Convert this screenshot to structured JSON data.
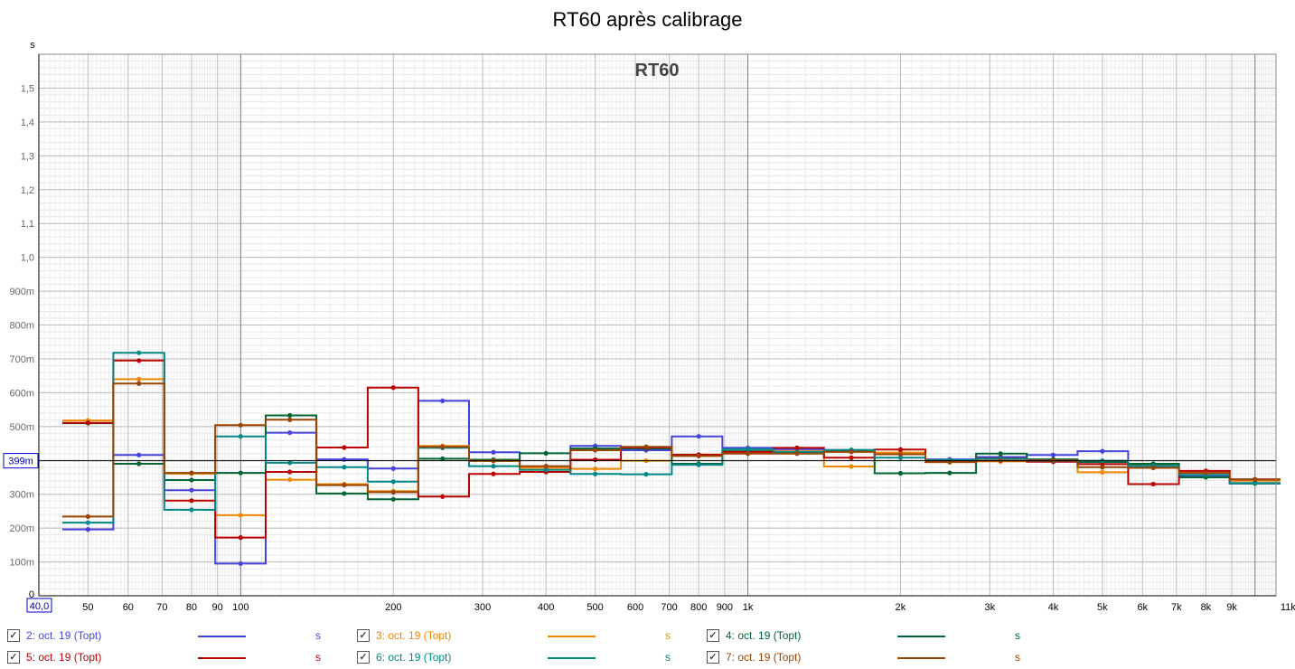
{
  "title": "RT60 après calibrage",
  "legend": [
    {
      "name": "2: oct. 19 (Topt)",
      "unit": "s",
      "color": "#4444dd",
      "checked": true
    },
    {
      "name": "3: oct. 19 (Topt)",
      "unit": "s",
      "color": "#ee8800",
      "checked": true
    },
    {
      "name": "4: oct. 19 (Topt)",
      "unit": "s",
      "color": "#006633",
      "checked": true
    },
    {
      "name": "5: oct. 19 (Topt)",
      "unit": "s",
      "color": "#bb0000",
      "checked": true
    },
    {
      "name": "6: oct. 19 (Topt)",
      "unit": "s",
      "color": "#008888",
      "checked": true
    },
    {
      "name": "7: oct. 19 (Topt)",
      "unit": "s",
      "color": "#994400",
      "checked": true
    }
  ],
  "chart_data": {
    "type": "line",
    "title": "RT60",
    "ylabel": "s",
    "xscale": "log",
    "xlim": [
      40,
      11000
    ],
    "ylim": [
      0,
      1.6
    ],
    "grid": true,
    "cursor_value": 0.399,
    "cursor_label": "399m",
    "xmin_label": "40,0",
    "xticks": [
      {
        "v": 50,
        "label": "50"
      },
      {
        "v": 60,
        "label": "60"
      },
      {
        "v": 70,
        "label": "70"
      },
      {
        "v": 80,
        "label": "80"
      },
      {
        "v": 90,
        "label": "90"
      },
      {
        "v": 100,
        "label": "100"
      },
      {
        "v": 200,
        "label": "200"
      },
      {
        "v": 300,
        "label": "300"
      },
      {
        "v": 400,
        "label": "400"
      },
      {
        "v": 500,
        "label": "500"
      },
      {
        "v": 600,
        "label": "600"
      },
      {
        "v": 700,
        "label": "700"
      },
      {
        "v": 800,
        "label": "800"
      },
      {
        "v": 900,
        "label": "900"
      },
      {
        "v": 1000,
        "label": "1k"
      },
      {
        "v": 2000,
        "label": "2k"
      },
      {
        "v": 3000,
        "label": "3k"
      },
      {
        "v": 4000,
        "label": "4k"
      },
      {
        "v": 5000,
        "label": "5k"
      },
      {
        "v": 6000,
        "label": "6k"
      },
      {
        "v": 7000,
        "label": "7k"
      },
      {
        "v": 8000,
        "label": "8k"
      },
      {
        "v": 9000,
        "label": "9k"
      },
      {
        "v": 11000,
        "label": "11kHz"
      }
    ],
    "yticks": [
      {
        "v": 0,
        "label": "0"
      },
      {
        "v": 0.1,
        "label": "100m"
      },
      {
        "v": 0.2,
        "label": "200m"
      },
      {
        "v": 0.3,
        "label": "300m"
      },
      {
        "v": 0.4,
        "label": "400m"
      },
      {
        "v": 0.5,
        "label": "500m"
      },
      {
        "v": 0.6,
        "label": "600m"
      },
      {
        "v": 0.7,
        "label": "700m"
      },
      {
        "v": 0.8,
        "label": "800m"
      },
      {
        "v": 0.9,
        "label": "900m"
      },
      {
        "v": 1.0,
        "label": "1,0"
      },
      {
        "v": 1.1,
        "label": "1,1"
      },
      {
        "v": 1.2,
        "label": "1,2"
      },
      {
        "v": 1.3,
        "label": "1,3"
      },
      {
        "v": 1.4,
        "label": "1,4"
      },
      {
        "v": 1.5,
        "label": "1,5"
      }
    ],
    "band_edges": [
      44.5,
      56.1,
      70.7,
      89.1,
      112,
      141,
      178,
      224,
      282,
      355,
      447,
      562,
      708,
      891,
      1122,
      1413,
      1778,
      2239,
      2818,
      3548,
      4467,
      5623,
      7079,
      8913,
      11220
    ],
    "x": [
      50,
      63,
      80,
      100,
      125,
      160,
      200,
      250,
      315,
      400,
      500,
      630,
      800,
      1000,
      1250,
      1600,
      2000,
      2500,
      3150,
      4000,
      5000,
      6300,
      8000,
      10000
    ],
    "series": [
      {
        "name": "2: oct. 19 (Topt)",
        "color": "#4444dd",
        "values": [
          0.196,
          0.416,
          0.312,
          0.095,
          0.482,
          0.403,
          0.376,
          0.576,
          0.424,
          0.382,
          0.443,
          0.43,
          0.471,
          0.437,
          0.433,
          0.426,
          0.419,
          0.403,
          0.41,
          0.416,
          0.427,
          0.379,
          0.353,
          0.332
        ]
      },
      {
        "name": "3: oct. 19 (Topt)",
        "color": "#ee8800",
        "values": [
          0.518,
          0.64,
          0.361,
          0.238,
          0.343,
          0.33,
          0.309,
          0.443,
          0.398,
          0.378,
          0.375,
          0.399,
          0.416,
          0.423,
          0.427,
          0.382,
          0.423,
          0.395,
          0.397,
          0.398,
          0.365,
          0.388,
          0.368,
          0.34
        ]
      },
      {
        "name": "4: oct. 19 (Topt)",
        "color": "#006633",
        "values": [
          0.51,
          0.39,
          0.342,
          0.363,
          0.533,
          0.302,
          0.285,
          0.405,
          0.402,
          0.421,
          0.435,
          0.435,
          0.39,
          0.427,
          0.421,
          0.428,
          0.362,
          0.363,
          0.42,
          0.403,
          0.395,
          0.39,
          0.35,
          0.332
        ]
      },
      {
        "name": "5: oct. 19 (Topt)",
        "color": "#bb0000",
        "values": [
          0.511,
          0.695,
          0.281,
          0.172,
          0.366,
          0.438,
          0.615,
          0.293,
          0.36,
          0.366,
          0.402,
          0.438,
          0.417,
          0.425,
          0.437,
          0.408,
          0.432,
          0.397,
          0.406,
          0.396,
          0.389,
          0.33,
          0.369,
          0.344
        ]
      },
      {
        "name": "6: oct. 19 (Topt)",
        "color": "#008888",
        "values": [
          0.216,
          0.718,
          0.254,
          0.471,
          0.393,
          0.38,
          0.337,
          0.437,
          0.383,
          0.372,
          0.36,
          0.359,
          0.387,
          0.433,
          0.425,
          0.431,
          0.408,
          0.401,
          0.405,
          0.399,
          0.399,
          0.384,
          0.357,
          0.333
        ]
      },
      {
        "name": "7: oct. 19 (Topt)",
        "color": "#994400",
        "values": [
          0.234,
          0.627,
          0.363,
          0.504,
          0.52,
          0.327,
          0.306,
          0.44,
          0.399,
          0.383,
          0.43,
          0.44,
          0.413,
          0.42,
          0.42,
          0.425,
          0.418,
          0.395,
          0.399,
          0.4,
          0.38,
          0.378,
          0.363,
          0.344
        ]
      }
    ]
  }
}
